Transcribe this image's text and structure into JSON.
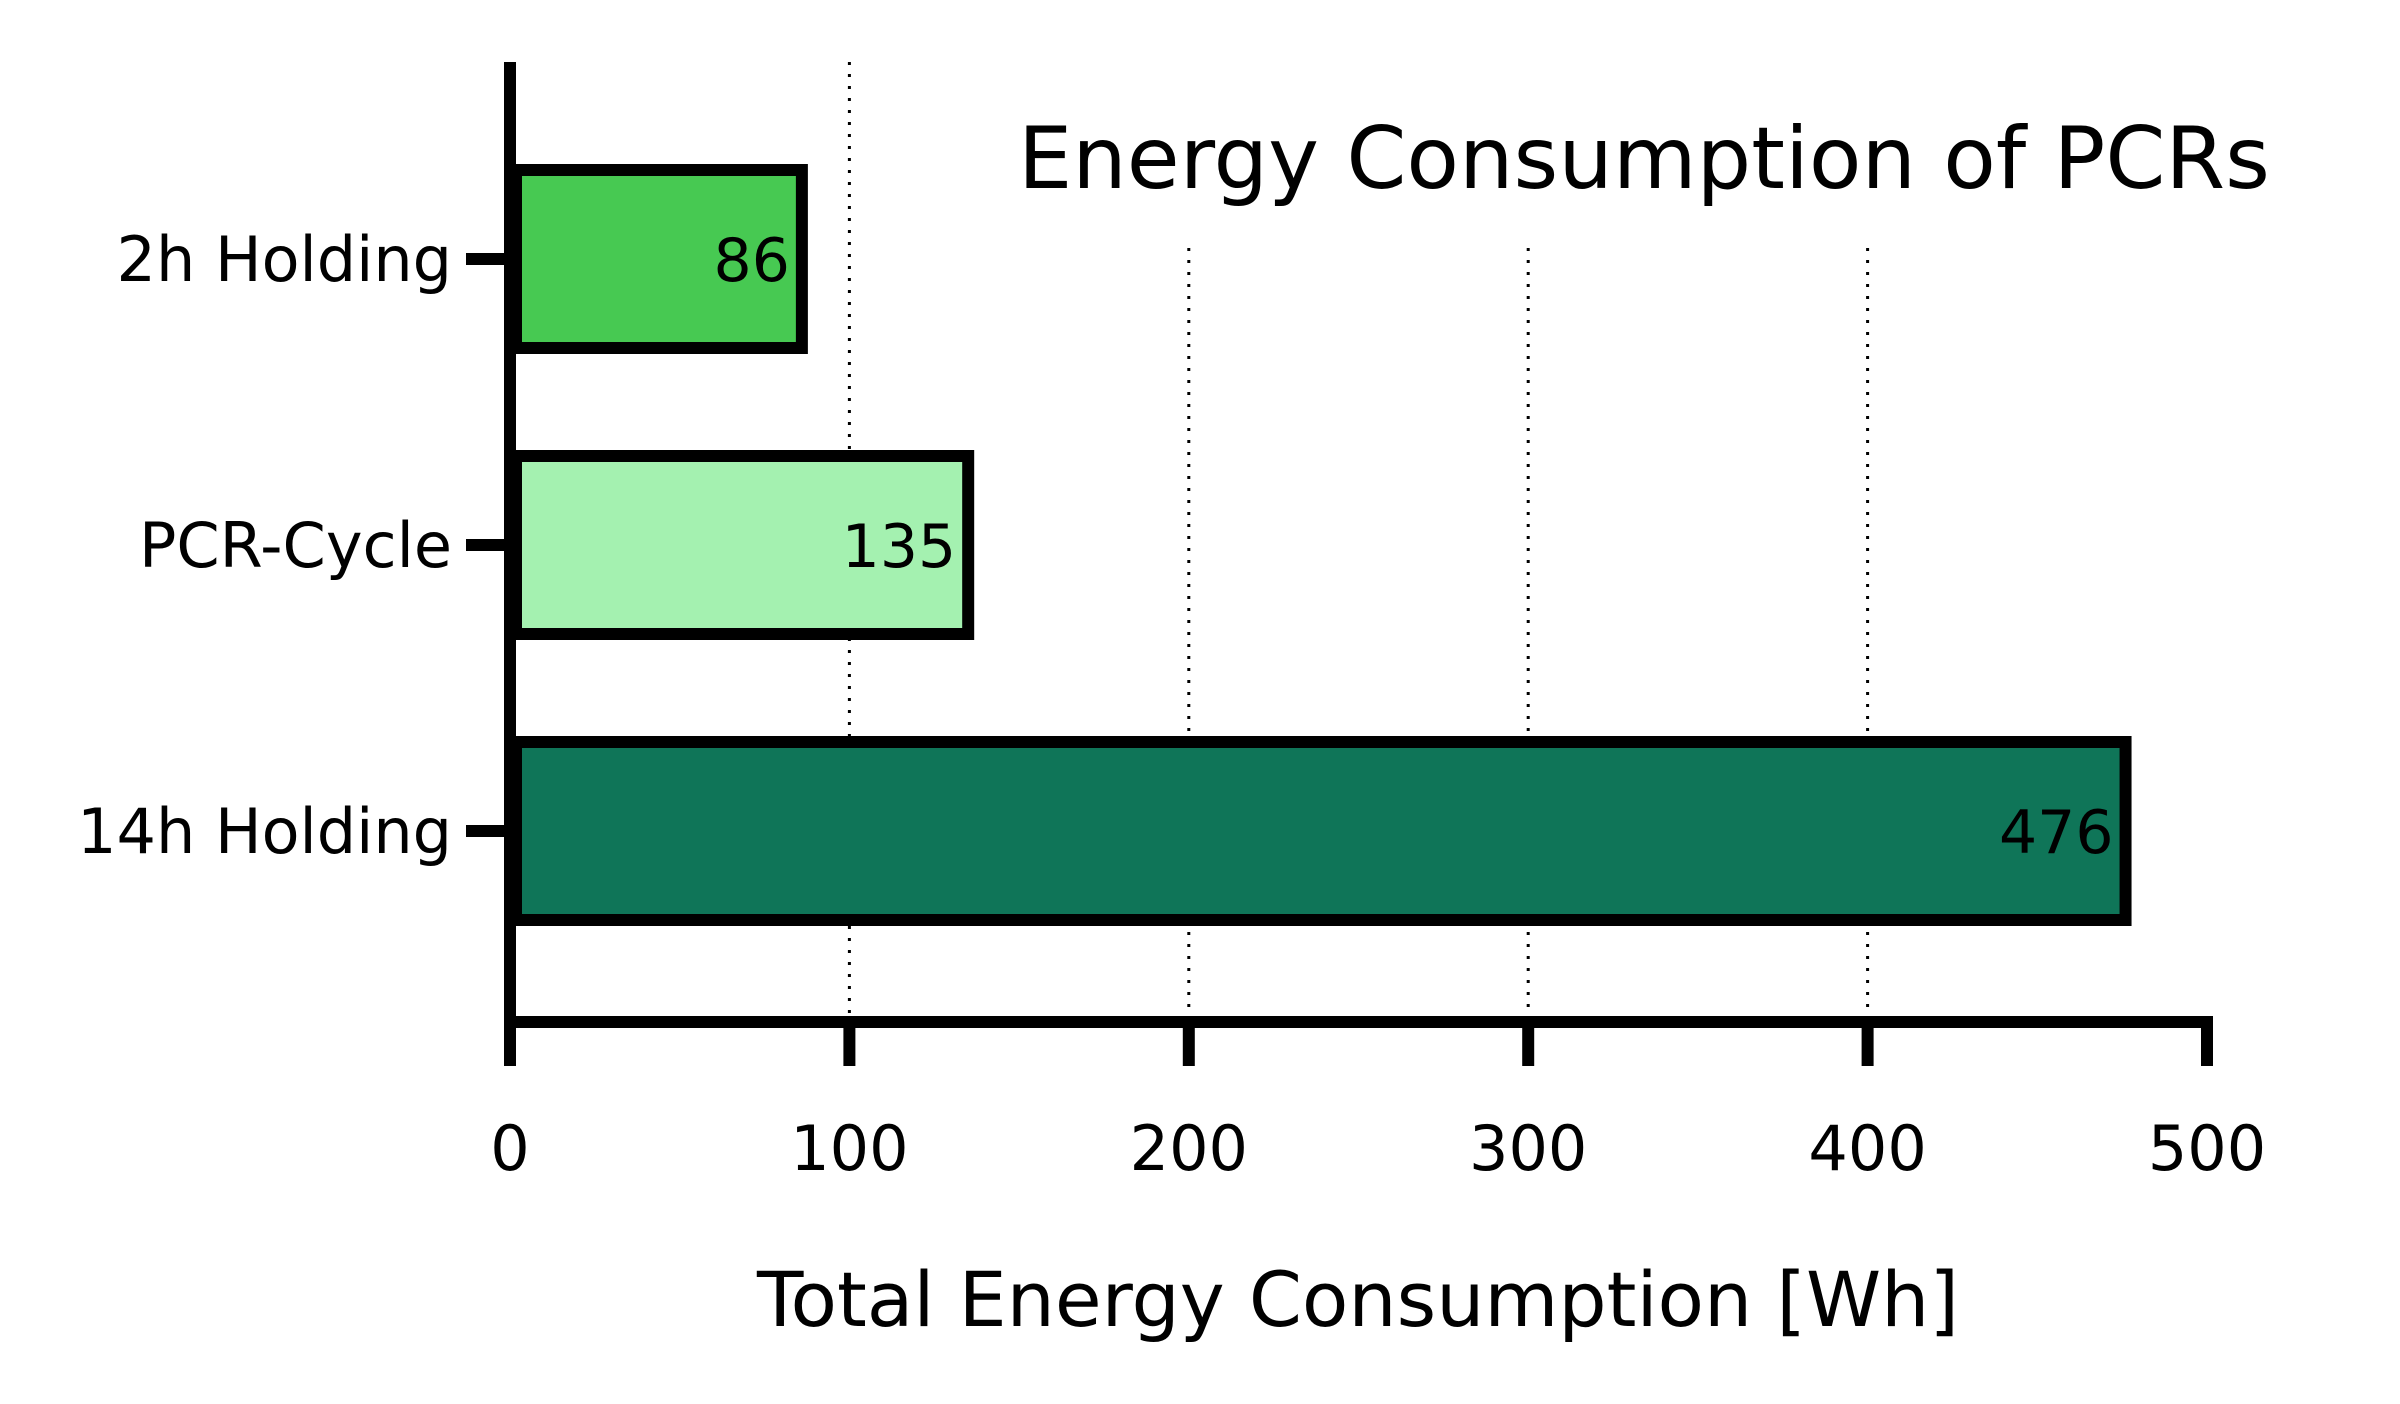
{
  "chart_data": {
    "type": "bar",
    "orientation": "horizontal",
    "title": "Energy Consumption of PCRs",
    "xlabel": "Total Energy Consumption [Wh]",
    "ylabel": "",
    "xlim": [
      0,
      500
    ],
    "xticks": [
      "0",
      "100",
      "200",
      "300",
      "400",
      "500"
    ],
    "xtick_values": [
      0,
      100,
      200,
      300,
      400,
      500
    ],
    "grid": "vertical dotted lines at 100, 200, 300, 400",
    "legend": "none",
    "categories": [
      "2h Holding",
      "PCR-Cycle",
      "14h Holding"
    ],
    "values": [
      86,
      135,
      476
    ],
    "value_labels": [
      "86",
      "135",
      "476"
    ],
    "colors": [
      "#47c952",
      "#a4f1b0",
      "#0f7558"
    ],
    "outline_color": "#000000"
  }
}
